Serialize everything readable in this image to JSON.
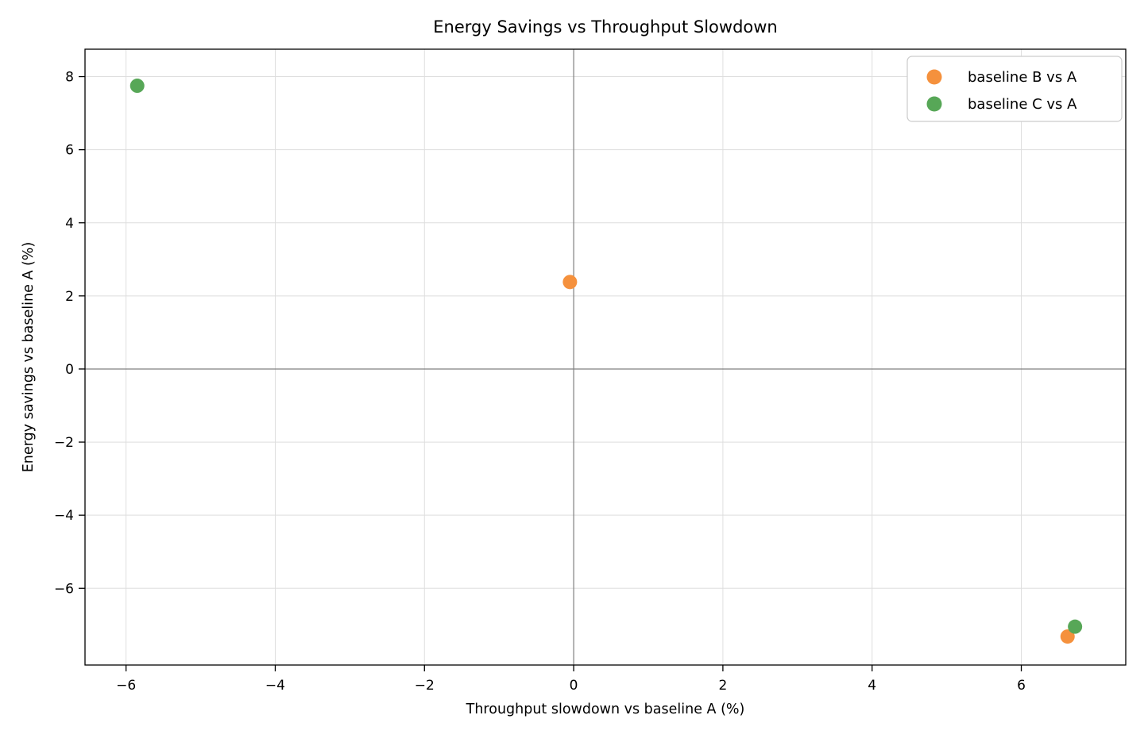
{
  "chart_data": {
    "type": "scatter",
    "title": "Energy Savings vs Throughput Slowdown",
    "xlabel": "Throughput slowdown vs baseline A (%)",
    "ylabel": "Energy savings vs baseline A (%)",
    "xlim": [
      -6.55,
      7.4
    ],
    "ylim": [
      -8.1,
      8.75
    ],
    "xticks": [
      -6,
      -4,
      -2,
      0,
      2,
      4,
      6
    ],
    "yticks": [
      8,
      6,
      4,
      2,
      0,
      -2,
      -4,
      -6
    ],
    "grid": true,
    "zero_lines": true,
    "legend_position": "upper right",
    "marker_radius_px": 9,
    "colors": {
      "grid": "#dedede",
      "zero_line": "#808080",
      "spine": "#000000",
      "legend_border": "#cccccc",
      "text": "#000000"
    },
    "series": [
      {
        "name": "baseline B vs A",
        "color": "#f5913d",
        "points": [
          [
            -0.05,
            2.38
          ],
          [
            6.62,
            -7.32
          ]
        ]
      },
      {
        "name": "baseline C vs A",
        "color": "#57a757",
        "points": [
          [
            -5.85,
            7.75
          ],
          [
            6.72,
            -7.05
          ]
        ]
      }
    ]
  }
}
